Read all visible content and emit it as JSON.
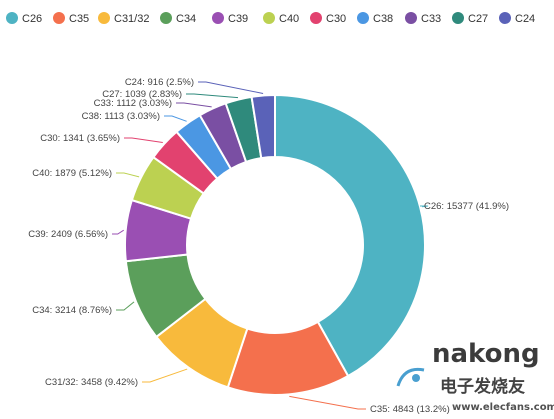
{
  "chart_data": {
    "type": "pie",
    "donut": true,
    "legend_position": "top",
    "slices": [
      {
        "name": "C26",
        "value": 15377,
        "percent": "41.9%",
        "color": "#4eb3c3",
        "label": "C26: 15377 (41.9%)"
      },
      {
        "name": "C35",
        "value": 4843,
        "percent": "13.2%",
        "color": "#f4704d",
        "label": "C35: 4843 (13.2%)"
      },
      {
        "name": "C31/32",
        "value": 3458,
        "percent": "9.42%",
        "color": "#f8ba3c",
        "label": "C31/32: 3458 (9.42%)"
      },
      {
        "name": "C34",
        "value": 3214,
        "percent": "8.76%",
        "color": "#5b9f5b",
        "label": "C34: 3214 (8.76%)"
      },
      {
        "name": "C39",
        "value": 2409,
        "percent": "6.56%",
        "color": "#9a4fb3",
        "label": "C39: 2409 (6.56%)"
      },
      {
        "name": "C40",
        "value": 1879,
        "percent": "5.12%",
        "color": "#bcd151",
        "label": "C40: 1879 (5.12%)"
      },
      {
        "name": "C30",
        "value": 1341,
        "percent": "3.65%",
        "color": "#e2426f",
        "label": "C30: 1341 (3.65%)"
      },
      {
        "name": "C38",
        "value": 1113,
        "percent": "3.03%",
        "color": "#4b97e3",
        "label": "C38: 1113 (3.03%)"
      },
      {
        "name": "C33",
        "value": 1112,
        "percent": "3.03%",
        "color": "#7a4fa3",
        "label": "C33: 1112 (3.03%)"
      },
      {
        "name": "C27",
        "value": 1039,
        "percent": "2.83%",
        "color": "#2f8a7c",
        "label": "C27: 1039 (2.83%)"
      },
      {
        "name": "C24",
        "value": 916,
        "percent": "2.5%",
        "color": "#5a62b8",
        "label": "C24: 916 (2.5%)"
      }
    ]
  },
  "watermark": {
    "logo_text": "elecfans",
    "brand_text": "nakong",
    "site": "电子发烧友",
    "url": "www.elecfans.com"
  }
}
